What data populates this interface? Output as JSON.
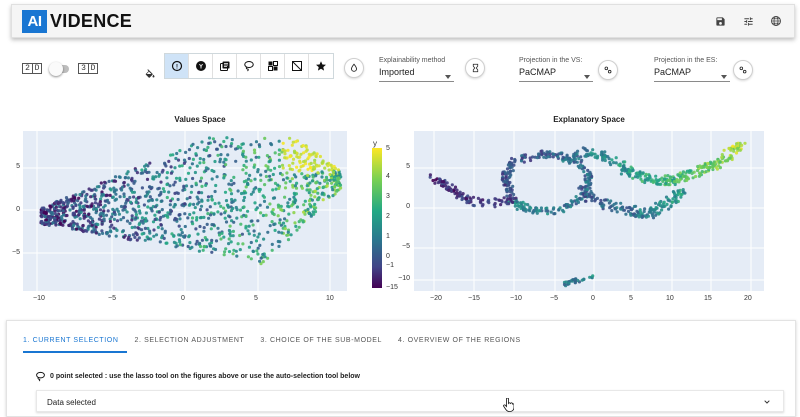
{
  "app": {
    "logo_mark": "AI",
    "logo_text": "VIDENCE"
  },
  "appbar_icons": [
    "save-icon",
    "tune-icon",
    "globe-icon"
  ],
  "dimension_toggle": {
    "left_label": [
      "2",
      "D"
    ],
    "right_label": [
      "3",
      "D"
    ],
    "value": "2D"
  },
  "toolbar": {
    "tools": [
      "explain-icon",
      "target-icon",
      "layers-icon",
      "lasso-icon",
      "grid-select-icon",
      "hide-icon",
      "star-icon"
    ],
    "active_tool": 0,
    "explainability": {
      "label": "Explainability method",
      "value": "Imported"
    },
    "projection_vs": {
      "label": "Projection in the VS:",
      "value": "PaCMAP"
    },
    "projection_es": {
      "label": "Projection in the ES:",
      "value": "PaCMAP"
    }
  },
  "values_space": {
    "title": "Values Space",
    "x_ticks": [
      "−10",
      "−5",
      "0",
      "5",
      "10"
    ],
    "y_ticks": [
      "5",
      "0",
      "−5"
    ],
    "colorbar": {
      "title": "y",
      "ticks": [
        "5",
        "4",
        "3",
        "2",
        "1",
        "0",
        "−1",
        "−15"
      ]
    }
  },
  "explanatory_space": {
    "title": "Explanatory Space",
    "x_ticks": [
      "−20",
      "−15",
      "−10",
      "−5",
      "0",
      "5",
      "10",
      "15",
      "20"
    ],
    "y_ticks": [
      "5",
      "0",
      "−5",
      "−10"
    ]
  },
  "tabs": [
    {
      "label": "1. CURRENT SELECTION",
      "active": true
    },
    {
      "label": "2. SELECTION ADJUSTMENT",
      "active": false
    },
    {
      "label": "3. CHOICE OF THE SUB-MODEL",
      "active": false
    },
    {
      "label": "4. OVERVIEW OF THE REGIONS",
      "active": false
    }
  ],
  "selection_info": "0 point selected : use the lasso tool on the figures above or use the auto-selection tool below",
  "expander": {
    "label": "Data selected"
  },
  "colors": {
    "accent": "#1976d2",
    "plot_bg": "#e5ecf6",
    "active_tool_bg": "#cfe3f7"
  }
}
